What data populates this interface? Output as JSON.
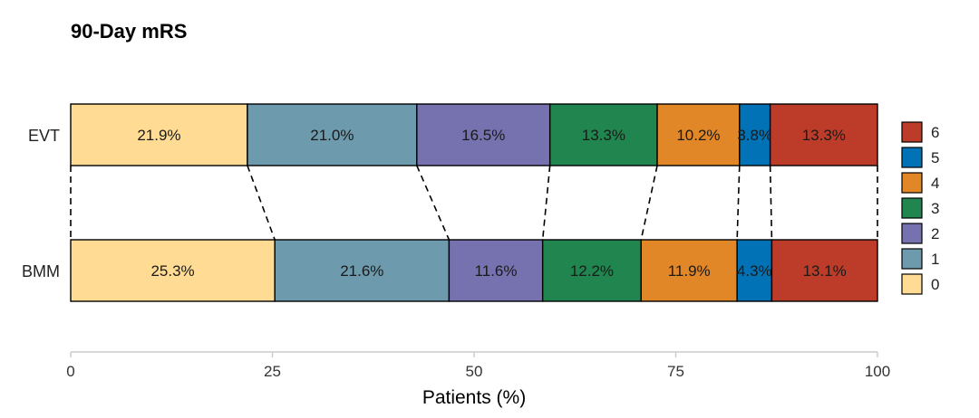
{
  "chart_data": {
    "type": "bar",
    "orientation": "horizontal",
    "stacked": true,
    "title": "90-Day mRS",
    "xlabel": "Patients (%)",
    "ylabel": "",
    "xlim": [
      0,
      100
    ],
    "x_ticks": [
      0,
      25,
      50,
      75,
      100
    ],
    "categories": [
      "EVT",
      "BMM"
    ],
    "series": [
      {
        "name": "0",
        "values": [
          21.9,
          25.3
        ],
        "labels": [
          "21.9%",
          "25.3%"
        ],
        "color": "#FFDB94"
      },
      {
        "name": "1",
        "values": [
          21.0,
          21.6
        ],
        "labels": [
          "21.0%",
          "21.6%"
        ],
        "color": "#6E9AAD"
      },
      {
        "name": "2",
        "values": [
          16.5,
          11.6
        ],
        "labels": [
          "16.5%",
          "11.6%"
        ],
        "color": "#7672B0"
      },
      {
        "name": "3",
        "values": [
          13.3,
          12.2
        ],
        "labels": [
          "13.3%",
          "12.2%"
        ],
        "color": "#20854E"
      },
      {
        "name": "4",
        "values": [
          10.2,
          11.9
        ],
        "labels": [
          "10.2%",
          "11.9%"
        ],
        "color": "#E18727"
      },
      {
        "name": "5",
        "values": [
          3.8,
          4.3
        ],
        "labels": [
          "3.8%",
          "4.3%"
        ],
        "color": "#0072B5"
      },
      {
        "name": "6",
        "values": [
          13.3,
          13.1
        ],
        "labels": [
          "13.3%",
          "13.1%"
        ],
        "color": "#BC3C29"
      }
    ],
    "connector_lines": "dashed",
    "grid": false,
    "legend": {
      "position": "right",
      "order": [
        "6",
        "5",
        "4",
        "3",
        "2",
        "1",
        "0"
      ]
    }
  }
}
